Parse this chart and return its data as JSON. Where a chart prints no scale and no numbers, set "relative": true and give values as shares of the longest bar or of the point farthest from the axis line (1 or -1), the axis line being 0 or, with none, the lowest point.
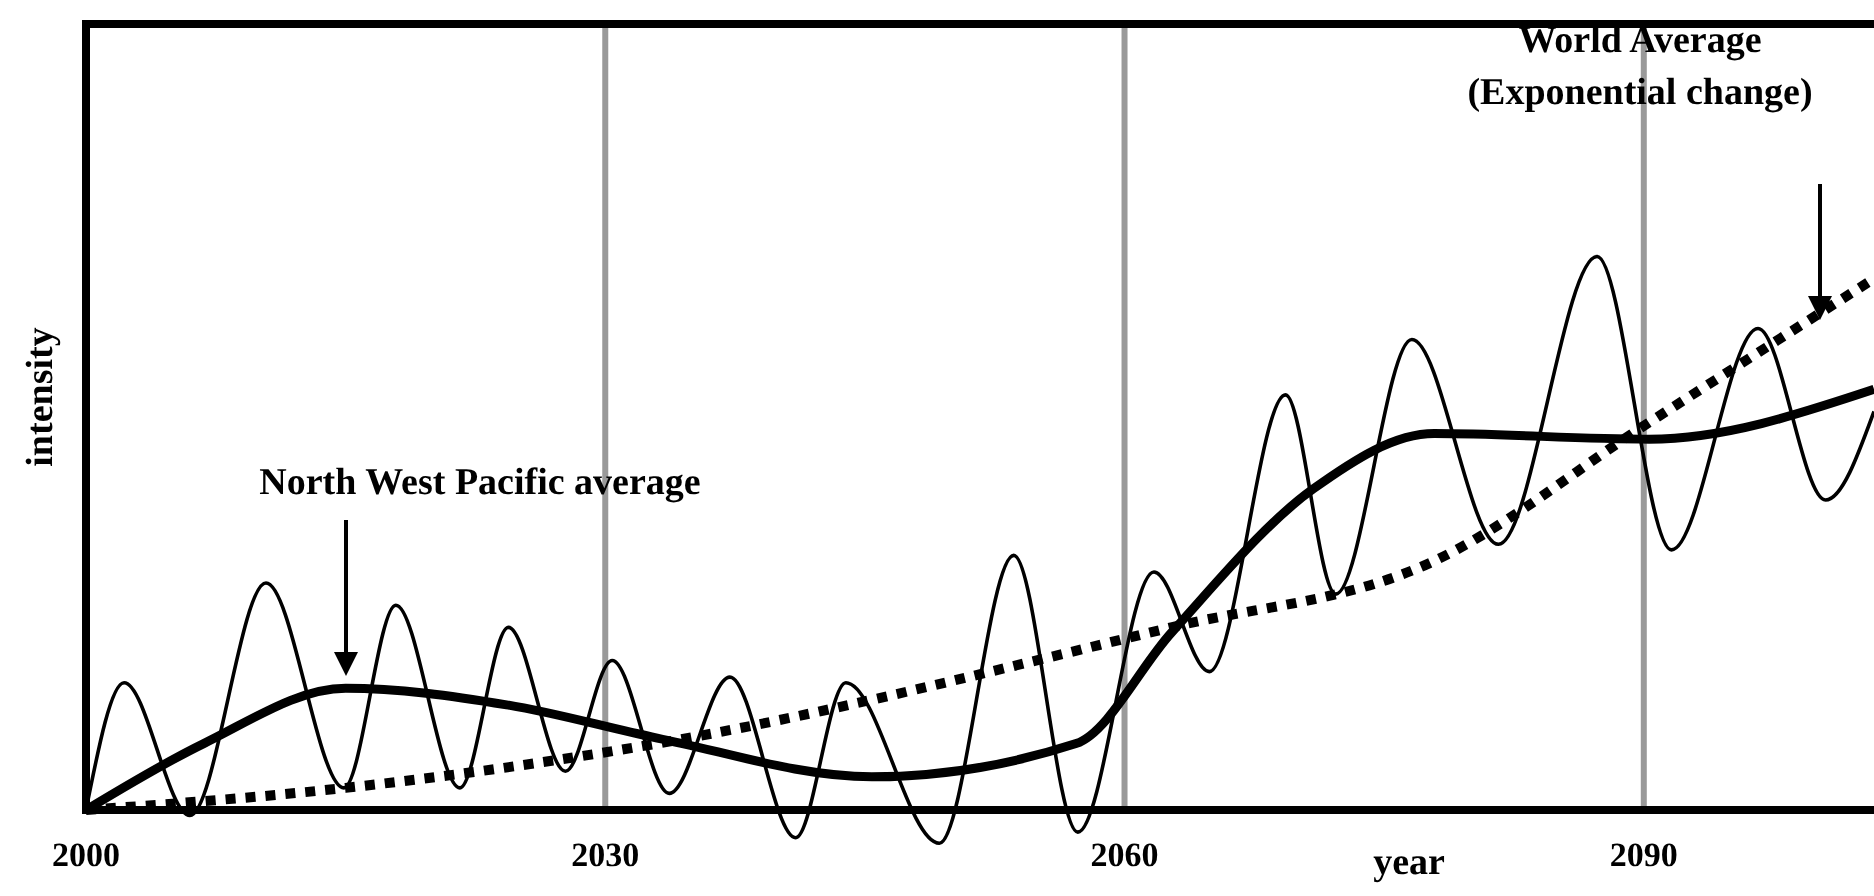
{
  "chart_data": {
    "type": "line",
    "relative": true,
    "xlabel": "year",
    "ylabel": "intensity",
    "xlim": [
      2000,
      2103.3
    ],
    "xticks": [
      2000,
      2030,
      2060,
      2090
    ],
    "grid": "x",
    "series": [
      {
        "color": "#000000",
        "line_style": "solid",
        "x": [
          2000,
          2002.2,
          2006,
          2010.4,
          2014.9,
          2017.9,
          2021.6,
          2024.4,
          2027.7,
          2030.4,
          2033.7,
          2037.2,
          2041,
          2043.9,
          2049.3,
          2053.6,
          2057.3,
          2061.7,
          2064.9,
          2069.3,
          2072.2,
          2076.6,
          2081.6,
          2087.3,
          2091.6,
          2096.6,
          2100.5,
          2103.3
        ],
        "values": [
          0,
          0.23,
          -0.01,
          0.41,
          0.04,
          0.37,
          0.04,
          0.33,
          0.07,
          0.27,
          0.03,
          0.24,
          -0.05,
          0.23,
          -0.06,
          0.46,
          -0.04,
          0.43,
          0.25,
          0.75,
          0.39,
          0.85,
          0.48,
          1,
          0.47,
          0.87,
          0.56,
          0.72
        ]
      },
      {
        "color": "#000000",
        "line_style": "solid",
        "x": [
          2000,
          2006.8,
          2015,
          2024.3,
          2033,
          2045.4,
          2057.2,
          2062.7,
          2070.9,
          2077.9,
          2090.3,
          2103.3
        ],
        "values": [
          0,
          0.12,
          0.22,
          0.19,
          0.13,
          0.06,
          0.12,
          0.32,
          0.58,
          0.68,
          0.67,
          0.76
        ]
      },
      {
        "color": "#000000",
        "line_style": "dotted",
        "x": [
          2000,
          2015,
          2033,
          2062.7,
          2077.9,
          2090.3,
          2103.3
        ],
        "values": [
          0,
          0.04,
          0.12,
          0.33,
          0.45,
          0.7,
          0.96
        ]
      }
    ],
    "annotations": [
      "North West Pacific average",
      "World Average\n(Exponential change)"
    ]
  }
}
